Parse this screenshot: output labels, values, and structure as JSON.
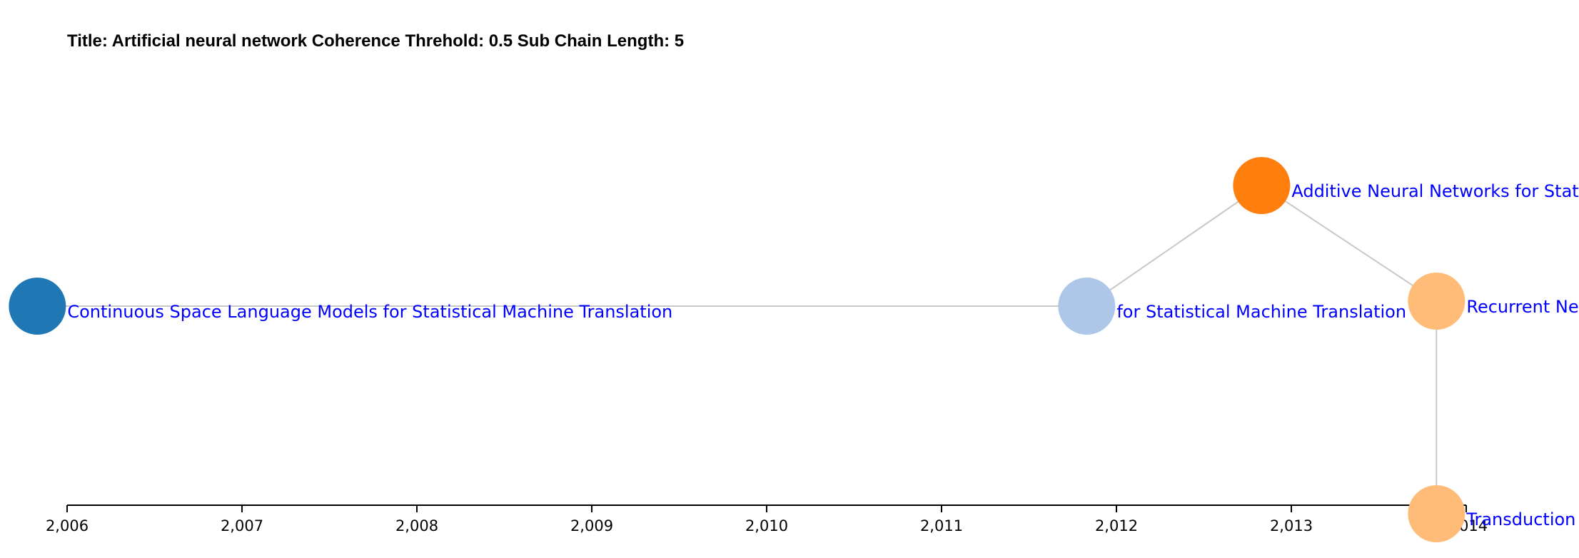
{
  "header": {
    "title": "Title: Artificial neural network Coherence Threhold: 0.5 Sub Chain Length: 5"
  },
  "chart_data": {
    "type": "timeline-graph",
    "x_axis": {
      "ticks": [
        "2,006",
        "2,007",
        "2,008",
        "2,009",
        "2,010",
        "2,011",
        "2,012",
        "2,013",
        "2,014"
      ],
      "tick_values": [
        2006,
        2007,
        2008,
        2009,
        2010,
        2011,
        2012,
        2013,
        2014
      ],
      "range": [
        2006,
        2014
      ]
    },
    "nodes": [
      {
        "id": "n1",
        "x": 2005.83,
        "label": "Continuous Space Language Models for Statistical Machine Translation",
        "color": "#1f77b4"
      },
      {
        "id": "n2",
        "x": 2011.83,
        "label": "for Statistical Machine Translation",
        "color": "#aec7e8"
      },
      {
        "id": "n3",
        "x": 2012.83,
        "label": "Additive Neural Networks for Statistical Machine Translation",
        "color": "#ff7f0e"
      },
      {
        "id": "n4",
        "x": 2013.83,
        "label": "Recurrent Neural Networks",
        "color": "#ffbb78"
      },
      {
        "id": "n5",
        "x": 2013.83,
        "label": "Transduction Recurrent Neural Networks",
        "color": "#ffbb78"
      }
    ],
    "links": [
      {
        "source": "n1",
        "target": "n2"
      },
      {
        "source": "n2",
        "target": "n3"
      },
      {
        "source": "n3",
        "target": "n4"
      },
      {
        "source": "n4",
        "target": "n5"
      }
    ]
  }
}
